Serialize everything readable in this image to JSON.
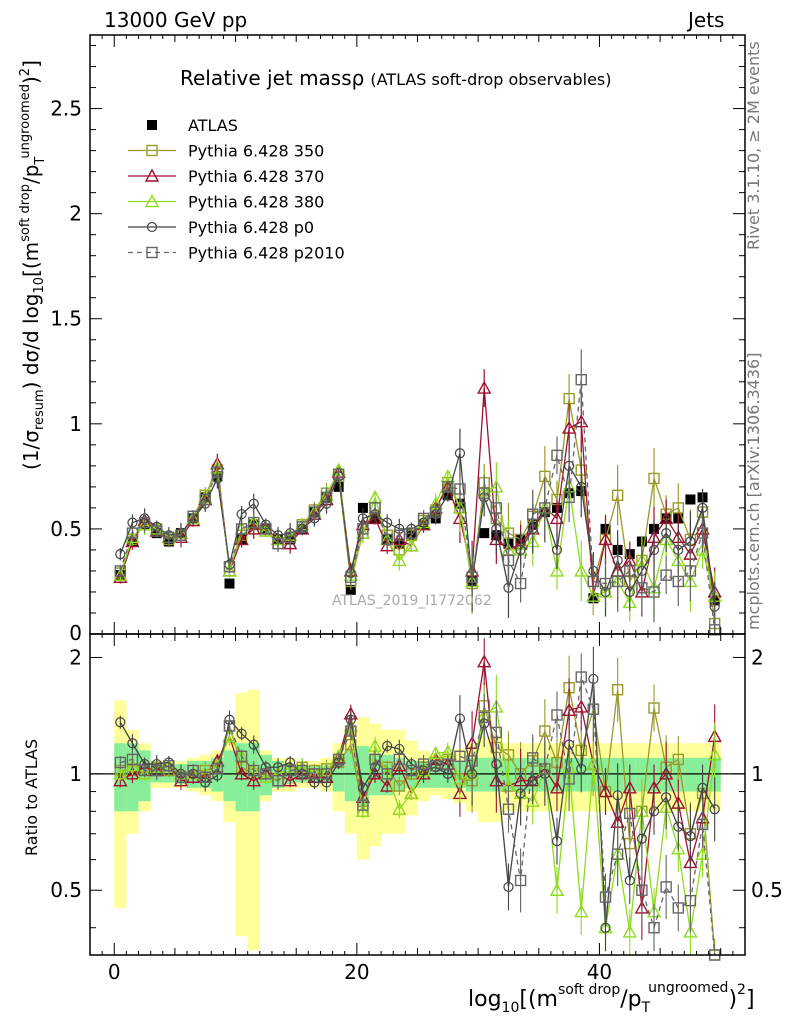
{
  "header": {
    "left": "13000 GeV pp",
    "right": "Jets"
  },
  "side": {
    "rivet": "Rivet 3.1.10, ≥ 2M events",
    "mcplots": "mcplots.cern.ch [arXiv:1306.3436]"
  },
  "watermark": "ATLAS_2019_I1772062",
  "chart_data": [
    {
      "panel": "main",
      "type": "line",
      "title": "Relative jet massρ",
      "subtitle": "(ATLAS soft-drop observables)",
      "ylabel": "(1/σ_resum) dσ/d log10[(m^soft drop/pT^ungroomed)^2]",
      "xlim": [
        -2,
        52
      ],
      "ylim": [
        0,
        2.85
      ],
      "xticks": [
        0,
        20,
        40
      ],
      "yticks": [
        0.5,
        1,
        1.5,
        2,
        2.5
      ],
      "legend_position": "top-left",
      "x": [
        0.5,
        1.5,
        2.5,
        3.5,
        4.5,
        5.5,
        6.5,
        7.5,
        8.5,
        9.5,
        10.5,
        11.5,
        12.5,
        13.5,
        14.5,
        15.5,
        16.5,
        17.5,
        18.5,
        19.5,
        20.5,
        21.5,
        22.5,
        23.5,
        24.5,
        25.5,
        26.5,
        27.5,
        28.5,
        29.5,
        30.5,
        31.5,
        32.5,
        33.5,
        34.5,
        35.5,
        36.5,
        37.5,
        38.5,
        39.5,
        40.5,
        41.5,
        42.5,
        43.5,
        44.5,
        45.5,
        46.5,
        47.5,
        48.5,
        49.5
      ],
      "series": [
        {
          "name": "ATLAS",
          "color": "#000000",
          "marker": "square-filled",
          "values": [
            0.28,
            0.44,
            0.52,
            0.48,
            0.44,
            0.48,
            0.55,
            0.65,
            0.75,
            0.24,
            0.45,
            0.52,
            0.5,
            0.45,
            0.45,
            0.5,
            0.58,
            0.65,
            0.7,
            0.21,
            0.6,
            0.55,
            0.45,
            0.43,
            0.47,
            0.52,
            0.55,
            0.66,
            0.62,
            0.25,
            0.48,
            0.47,
            0.43,
            0.45,
            0.52,
            0.58,
            0.6,
            0.67,
            0.68,
            0.17,
            0.5,
            0.4,
            0.38,
            0.44,
            0.5,
            0.55,
            0.55,
            0.64,
            0.65,
            0.16
          ]
        },
        {
          "name": "Pythia 6.428 350",
          "color": "#9a9a2a",
          "marker": "square-open",
          "dash": "",
          "values": [
            0.29,
            0.45,
            0.52,
            0.5,
            0.45,
            0.47,
            0.56,
            0.66,
            0.78,
            0.32,
            0.47,
            0.52,
            0.49,
            0.43,
            0.46,
            0.52,
            0.59,
            0.67,
            0.75,
            0.25,
            0.48,
            0.6,
            0.47,
            0.4,
            0.47,
            0.54,
            0.59,
            0.72,
            0.6,
            0.24,
            0.72,
            0.55,
            0.48,
            0.45,
            0.56,
            0.75,
            0.64,
            1.12,
            0.78,
            0.25,
            0.45,
            0.66,
            0.25,
            0.35,
            0.74,
            0.57,
            0.6,
            0.45,
            0.58,
            0.05
          ]
        },
        {
          "name": "Pythia 6.428 370",
          "color": "#a01030",
          "marker": "triangle-open",
          "dash": "",
          "values": [
            0.27,
            0.44,
            0.54,
            0.49,
            0.46,
            0.46,
            0.54,
            0.64,
            0.81,
            0.3,
            0.45,
            0.5,
            0.5,
            0.45,
            0.43,
            0.5,
            0.57,
            0.64,
            0.77,
            0.3,
            0.52,
            0.55,
            0.42,
            0.45,
            0.42,
            0.52,
            0.6,
            0.7,
            0.55,
            0.3,
            1.17,
            0.45,
            0.4,
            0.43,
            0.5,
            0.6,
            0.55,
            0.98,
            1.01,
            0.18,
            0.45,
            0.3,
            0.35,
            0.2,
            0.46,
            0.55,
            0.46,
            0.38,
            0.5,
            0.2
          ]
        },
        {
          "name": "Pythia 6.428 380",
          "color": "#8fdc20",
          "marker": "triangle-open",
          "dash": "",
          "values": [
            0.28,
            0.46,
            0.52,
            0.5,
            0.46,
            0.48,
            0.55,
            0.65,
            0.79,
            0.3,
            0.5,
            0.53,
            0.49,
            0.45,
            0.47,
            0.52,
            0.58,
            0.66,
            0.78,
            0.28,
            0.48,
            0.65,
            0.45,
            0.35,
            0.42,
            0.53,
            0.62,
            0.75,
            0.6,
            0.25,
            0.68,
            0.7,
            0.4,
            0.4,
            0.44,
            0.6,
            0.3,
            0.7,
            0.3,
            0.18,
            0.2,
            0.25,
            0.15,
            0.35,
            0.22,
            0.45,
            0.35,
            0.25,
            0.4,
            0.18
          ]
        },
        {
          "name": "Pythia 6.428 p0",
          "color": "#444444",
          "marker": "circle-open",
          "dash": "",
          "values": [
            0.38,
            0.53,
            0.55,
            0.51,
            0.47,
            0.48,
            0.55,
            0.62,
            0.74,
            0.33,
            0.57,
            0.62,
            0.52,
            0.47,
            0.48,
            0.5,
            0.55,
            0.62,
            0.75,
            0.29,
            0.55,
            0.57,
            0.53,
            0.5,
            0.5,
            0.53,
            0.57,
            0.66,
            0.86,
            0.25,
            0.65,
            0.5,
            0.22,
            0.4,
            0.5,
            0.58,
            0.4,
            0.8,
            0.7,
            0.3,
            0.2,
            0.35,
            0.2,
            0.3,
            0.4,
            0.48,
            0.4,
            0.44,
            0.6,
            0.13
          ]
        },
        {
          "name": "Pythia 6.428 p2010",
          "color": "#666666",
          "marker": "square-open",
          "dash": "5,4",
          "values": [
            0.3,
            0.48,
            0.53,
            0.49,
            0.46,
            0.47,
            0.56,
            0.64,
            0.77,
            0.32,
            0.5,
            0.53,
            0.5,
            0.43,
            0.46,
            0.51,
            0.58,
            0.65,
            0.76,
            0.27,
            0.5,
            0.6,
            0.45,
            0.47,
            0.48,
            0.55,
            0.58,
            0.7,
            0.69,
            0.27,
            0.67,
            0.6,
            0.35,
            0.24,
            0.57,
            0.6,
            0.85,
            0.65,
            1.21,
            0.25,
            0.24,
            0.25,
            0.3,
            0.22,
            0.2,
            0.28,
            0.25,
            0.3,
            0.48,
            0.02
          ]
        }
      ]
    },
    {
      "panel": "ratio",
      "type": "line",
      "ylabel": "Ratio to ATLAS",
      "xlabel": "log10[(m^soft drop/pT^ungroomed)^2]",
      "ylim": [
        0.34,
        2.3
      ],
      "yticks": [
        0.5,
        1,
        2
      ],
      "ylog": true,
      "reference": 1,
      "band_outer": [
        0.55,
        0.3,
        0.2,
        0.08,
        0.08,
        0.08,
        0.1,
        0.12,
        0.15,
        0.25,
        0.62,
        0.65,
        0.15,
        0.1,
        0.1,
        0.08,
        0.08,
        0.1,
        0.2,
        0.3,
        0.4,
        0.35,
        0.3,
        0.3,
        0.22,
        0.15,
        0.12,
        0.14,
        0.16,
        0.2,
        0.25,
        0.25,
        0.2,
        0.2,
        0.2,
        0.2,
        0.2,
        0.2,
        0.2,
        0.2,
        0.2,
        0.2,
        0.2,
        0.2,
        0.2,
        0.2,
        0.2,
        0.2,
        0.2,
        0.2
      ],
      "band_inner": [
        0.2,
        0.2,
        0.15,
        0.05,
        0.05,
        0.06,
        0.08,
        0.08,
        0.1,
        0.15,
        0.2,
        0.2,
        0.12,
        0.08,
        0.06,
        0.05,
        0.05,
        0.05,
        0.1,
        0.15,
        0.18,
        0.12,
        0.12,
        0.1,
        0.08,
        0.08,
        0.08,
        0.08,
        0.08,
        0.1,
        0.1,
        0.1,
        0.1,
        0.1,
        0.1,
        0.1,
        0.1,
        0.1,
        0.1,
        0.1,
        0.1,
        0.1,
        0.1,
        0.1,
        0.1,
        0.1,
        0.1,
        0.1,
        0.1,
        0.1
      ],
      "series": [
        {
          "name": "Pythia 6.428 350",
          "values": [
            1.02,
            1.02,
            1.0,
            1.04,
            1.02,
            0.98,
            1.02,
            1.02,
            1.04,
            1.33,
            1.04,
            1.0,
            0.98,
            0.96,
            1.02,
            1.04,
            1.02,
            1.03,
            1.07,
            1.19,
            0.8,
            1.09,
            1.04,
            0.93,
            1.0,
            1.04,
            1.07,
            1.09,
            0.97,
            0.96,
            1.5,
            1.17,
            1.12,
            1.0,
            1.08,
            1.29,
            1.07,
            1.67,
            1.15,
            1.47,
            0.9,
            1.65,
            0.66,
            0.8,
            1.48,
            1.04,
            1.09,
            0.7,
            0.89,
            0.31
          ]
        },
        {
          "name": "Pythia 6.428 370",
          "values": [
            0.96,
            1.0,
            1.04,
            1.02,
            1.05,
            0.96,
            0.98,
            0.98,
            1.08,
            1.25,
            1.0,
            0.96,
            1.0,
            1.0,
            0.96,
            1.0,
            0.98,
            0.98,
            1.1,
            1.43,
            0.87,
            1.0,
            0.93,
            1.05,
            0.89,
            1.0,
            1.09,
            1.06,
            0.89,
            1.2,
            1.95,
            0.96,
            0.93,
            0.96,
            0.96,
            1.03,
            0.92,
            1.46,
            1.49,
            1.06,
            0.9,
            0.75,
            0.92,
            0.45,
            0.92,
            1.0,
            0.84,
            0.59,
            0.77,
            1.25
          ]
        },
        {
          "name": "Pythia 6.428 380",
          "values": [
            1.0,
            1.05,
            1.0,
            1.04,
            1.05,
            1.0,
            1.0,
            1.0,
            1.05,
            1.25,
            1.11,
            1.02,
            0.98,
            1.0,
            1.04,
            1.04,
            1.0,
            1.02,
            1.11,
            1.33,
            0.8,
            1.18,
            1.0,
            0.81,
            0.89,
            1.02,
            1.13,
            1.14,
            0.97,
            1.0,
            1.42,
            1.49,
            0.93,
            0.89,
            0.85,
            1.03,
            0.5,
            1.04,
            0.44,
            1.06,
            0.4,
            0.62,
            0.39,
            0.8,
            0.44,
            0.82,
            0.64,
            0.39,
            0.62,
            1.12
          ]
        },
        {
          "name": "Pythia 6.428 p0",
          "values": [
            1.36,
            1.2,
            1.06,
            1.06,
            1.07,
            1.0,
            1.0,
            0.95,
            0.99,
            1.38,
            1.27,
            1.19,
            1.04,
            1.04,
            1.07,
            1.0,
            0.95,
            0.95,
            1.07,
            1.38,
            0.92,
            1.04,
            1.18,
            1.16,
            1.06,
            1.02,
            1.04,
            1.0,
            1.39,
            1.0,
            1.35,
            1.06,
            0.51,
            0.89,
            0.96,
            1.0,
            0.67,
            1.19,
            1.03,
            1.76,
            0.4,
            0.88,
            0.53,
            0.68,
            0.8,
            0.87,
            0.73,
            0.69,
            0.92,
            0.81
          ]
        },
        {
          "name": "Pythia 6.428 p2010",
          "values": [
            1.07,
            1.09,
            1.02,
            1.02,
            1.05,
            0.98,
            1.02,
            0.98,
            1.03,
            1.33,
            1.11,
            1.02,
            1.0,
            0.96,
            1.02,
            1.02,
            1.0,
            1.0,
            1.09,
            1.29,
            0.83,
            1.09,
            1.0,
            1.09,
            1.02,
            1.06,
            1.05,
            1.06,
            1.11,
            1.08,
            1.4,
            1.28,
            0.81,
            0.53,
            1.1,
            1.03,
            1.42,
            0.97,
            1.78,
            1.47,
            0.48,
            0.62,
            0.79,
            0.5,
            0.4,
            0.51,
            0.45,
            0.47,
            0.74,
            0.13
          ]
        }
      ]
    }
  ]
}
